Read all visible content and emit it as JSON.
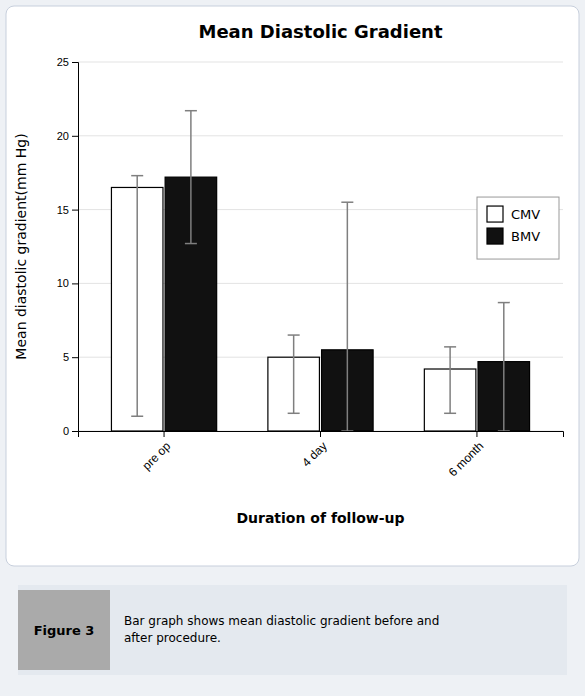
{
  "chart_data": {
    "type": "bar",
    "title": "Mean Diastolic Gradient",
    "xlabel": "Duration of follow-up",
    "ylabel": "Mean diastolic gradient(mm Hg)",
    "categories": [
      "pre op",
      "4 day",
      "6 month"
    ],
    "series": [
      {
        "name": "CMV",
        "color": "#ffffff",
        "values": [
          16.5,
          5.0,
          4.2
        ],
        "err_plus": [
          0.8,
          1.5,
          1.5
        ],
        "err_minus": [
          15.5,
          3.8,
          3.0
        ]
      },
      {
        "name": "BMV",
        "color": "#111111",
        "values": [
          17.2,
          5.5,
          4.7
        ],
        "err_plus": [
          4.5,
          10.0,
          4.0
        ],
        "err_minus": [
          4.5,
          5.5,
          4.7
        ]
      }
    ],
    "ylim": [
      0,
      25
    ],
    "yticks": [
      0,
      5,
      10,
      15,
      20,
      25
    ],
    "grid": true,
    "legend": "right",
    "annotations": [
      "Figure 3",
      "Bar graph shows mean diastolic gradient before and\nafter procedure."
    ]
  }
}
